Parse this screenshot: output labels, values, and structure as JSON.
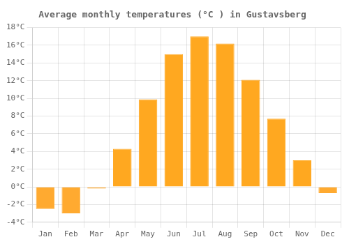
{
  "chart_data": {
    "type": "bar",
    "title": "Average monthly temperatures (°C ) in Gustavsberg",
    "categories": [
      "Jan",
      "Feb",
      "Mar",
      "Apr",
      "May",
      "Jun",
      "Jul",
      "Aug",
      "Sep",
      "Oct",
      "Nov",
      "Dec"
    ],
    "values": [
      -2.5,
      -3.0,
      -0.2,
      4.3,
      9.9,
      15.0,
      17.0,
      16.2,
      12.1,
      7.7,
      3.0,
      -0.7
    ],
    "colors": [
      "#FFAA30",
      "#FFAA30",
      "#FFAA30",
      "#FFA820",
      "#FFA820",
      "#FFA820",
      "#FFA820",
      "#FFA820",
      "#FFA820",
      "#FFA820",
      "#FFA820",
      "#FFAA30"
    ],
    "ylim": [
      -4,
      18
    ],
    "yticks": [
      {
        "value": -4,
        "label": "-4°C"
      },
      {
        "value": -2,
        "label": "-2°C"
      },
      {
        "value": 0,
        "label": "0°C"
      },
      {
        "value": 2,
        "label": "2°C"
      },
      {
        "value": 4,
        "label": "4°C"
      },
      {
        "value": 6,
        "label": "6°C"
      },
      {
        "value": 8,
        "label": "8°C"
      },
      {
        "value": 10,
        "label": "10°C"
      },
      {
        "value": 12,
        "label": "12°C"
      },
      {
        "value": 14,
        "label": "14°C"
      },
      {
        "value": 16,
        "label": "16°C"
      },
      {
        "value": 18,
        "label": "18°C"
      }
    ],
    "grid": true
  }
}
